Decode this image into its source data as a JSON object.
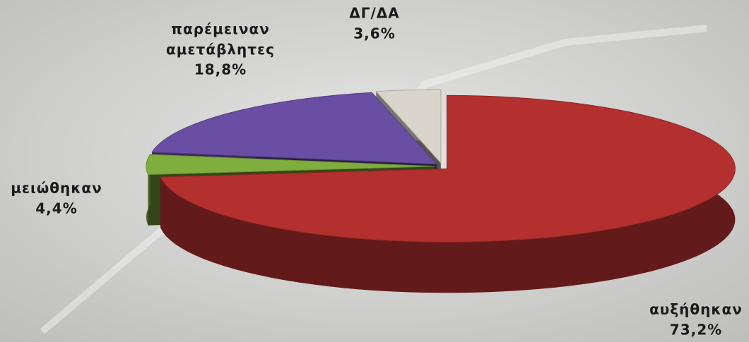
{
  "chart_data": {
    "type": "pie3d",
    "categories": [
      "αυξήθηκαν",
      "μειώθηκαν",
      "παρέμειναν αμετάβλητες",
      "ΔΓ/ΔΑ"
    ],
    "values": [
      73.2,
      4.4,
      18.8,
      3.6
    ],
    "value_labels": [
      "73,2%",
      "4,4%",
      "18,8%",
      "3,6%"
    ],
    "colors": [
      "#b3302f",
      "#7fae3e",
      "#6a4ea3",
      "#d9d5cc"
    ]
  }
}
